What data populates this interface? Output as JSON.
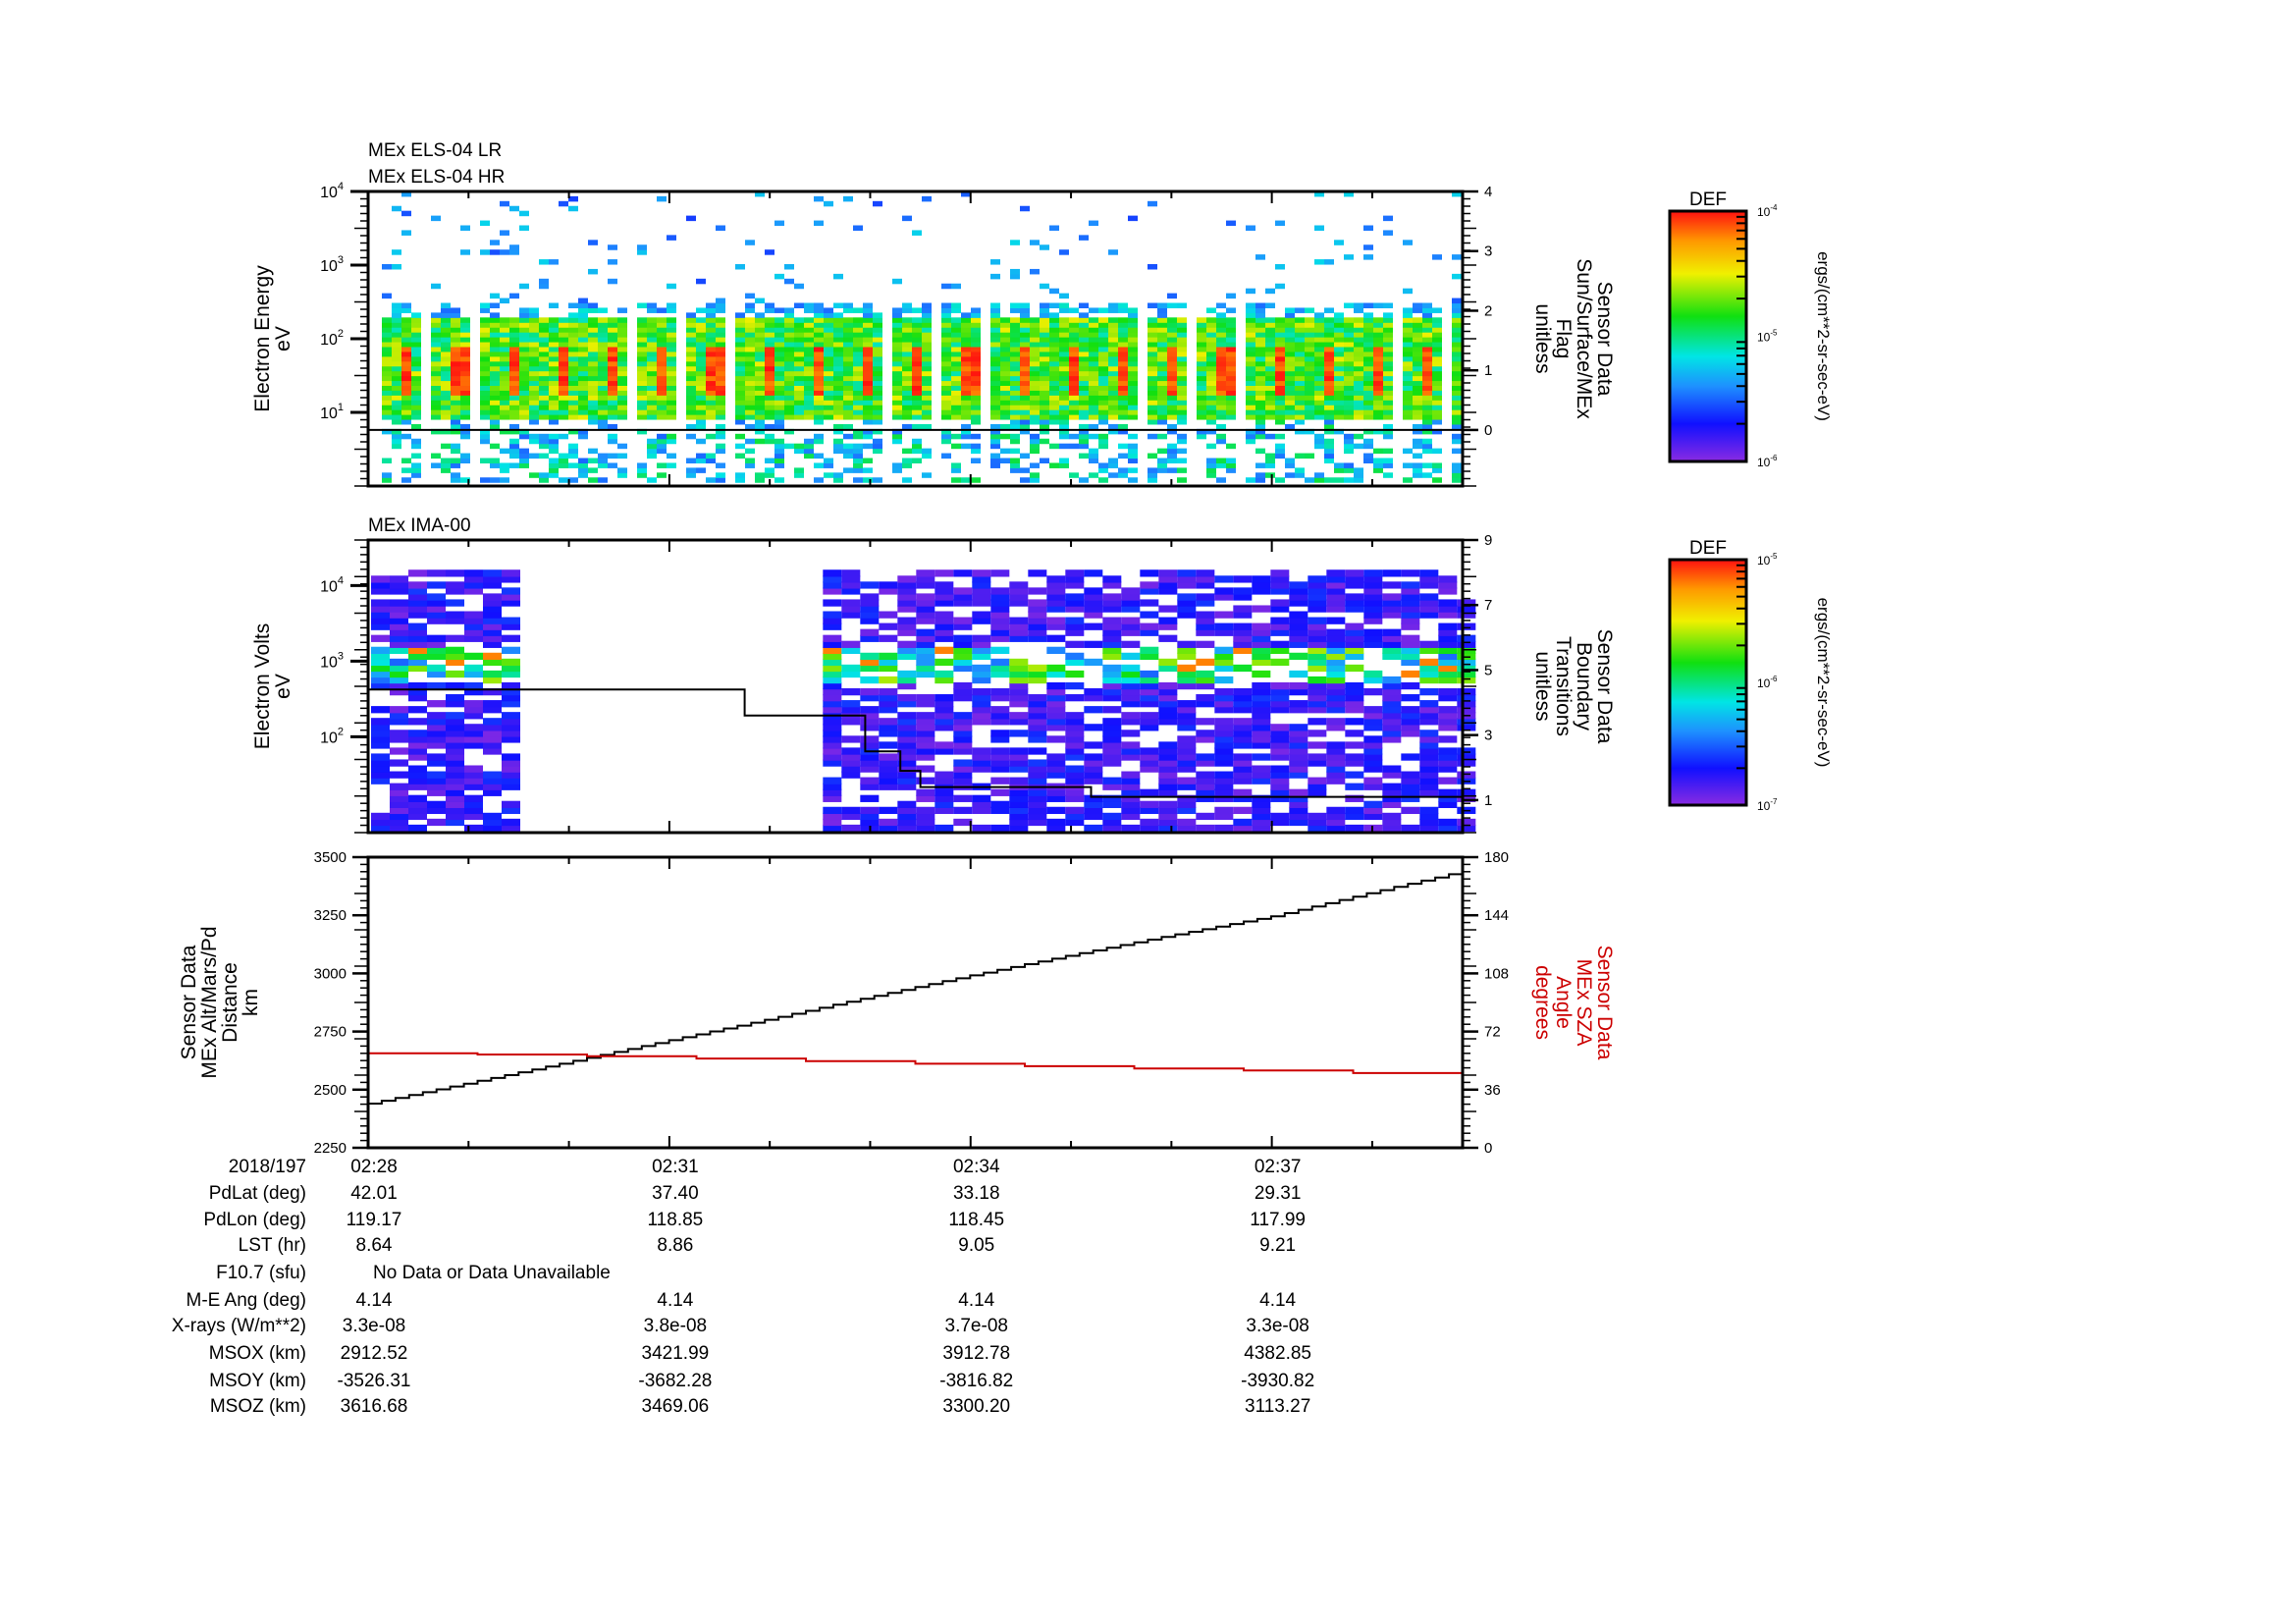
{
  "colors": {
    "axis": "#000000",
    "sza_line": "#cc0000",
    "altitude_line": "#000000"
  },
  "chart_data": [
    {
      "type": "heatmap",
      "title_lines": [
        "MEx ELS-04 LR",
        "MEx ELS-04 HR"
      ],
      "ylabel": [
        "Electron Energy",
        "eV"
      ],
      "yscale": "log",
      "ylim": [
        1,
        10000
      ],
      "yticks": [
        {
          "base": "10",
          "exp": "4",
          "v": 10000
        },
        {
          "base": "10",
          "exp": "3",
          "v": 1000
        },
        {
          "base": "10",
          "exp": "2",
          "v": 100
        },
        {
          "base": "10",
          "exp": "1",
          "v": 10
        }
      ],
      "y2label": [
        "Sensor Data",
        "Sun/Surface/MEx",
        "Flag",
        "unitless"
      ],
      "y2lim": [
        -0.94,
        4
      ],
      "y2ticks": [
        "0",
        "1",
        "2",
        "3",
        "4"
      ],
      "overlay_line": {
        "name": "Sun/Surface/MEx Flag",
        "t_min": [
          0,
          10.9
        ],
        "values": [
          0,
          0
        ]
      },
      "colorbar": {
        "title": "DEF",
        "range_exp": [
          -6,
          -4
        ],
        "ticks": [
          {
            "base": "10",
            "exp": "-4"
          },
          {
            "base": "10",
            "exp": "-5"
          },
          {
            "base": "10",
            "exp": "-6"
          }
        ],
        "unit": "ergs/(cm**2-sr-sec-eV)"
      },
      "description_of_intensity": "dense 10-200 eV population with periodic peaks (~20-60 eV), sparse higher/lower energies"
    },
    {
      "type": "heatmap",
      "title_lines": [
        "MEx IMA-00"
      ],
      "ylabel": [
        "Electron Volts",
        "eV"
      ],
      "yscale": "log",
      "ylim": [
        5.4,
        40000
      ],
      "yticks": [
        {
          "base": "10",
          "exp": "4",
          "v": 10000
        },
        {
          "base": "10",
          "exp": "3",
          "v": 1000
        },
        {
          "base": "10",
          "exp": "2",
          "v": 100
        }
      ],
      "y2label": [
        "Sensor Data",
        "Boundary",
        "Transitions",
        "unitless"
      ],
      "y2lim": [
        0,
        9
      ],
      "y2ticks": [
        "1",
        "3",
        "5",
        "7",
        "9"
      ],
      "data_time_ranges_min": [
        [
          0,
          1.35
        ],
        [
          4.5,
          10.9
        ]
      ],
      "overlay_line": {
        "name": "Boundary Transitions",
        "t_min": [
          0,
          3.75,
          3.75,
          4.95,
          4.95,
          5.3,
          5.3,
          5.5,
          5.5,
          7.2,
          7.2,
          10.9
        ],
        "values": [
          4.4,
          4.4,
          3.6,
          3.6,
          2.5,
          2.5,
          1.9,
          1.9,
          1.4,
          1.4,
          1.1,
          1.1
        ]
      },
      "colorbar": {
        "title": "DEF",
        "range_exp": [
          -7,
          -5
        ],
        "ticks": [
          {
            "base": "10",
            "exp": "-5"
          },
          {
            "base": "10",
            "exp": "-6"
          },
          {
            "base": "10",
            "exp": "-7"
          }
        ],
        "unit": "ergs/(cm**2-sr-sec-eV)"
      }
    },
    {
      "type": "line",
      "ylabel": [
        "Sensor Data",
        "MEx Alt/Mars/Pd",
        "Distance",
        "km"
      ],
      "ylim": [
        2250,
        3500
      ],
      "yticks": [
        "2250",
        "2500",
        "2750",
        "3000",
        "3250",
        "3500"
      ],
      "y2label": [
        "Sensor Data",
        "MEx SZA",
        "Angle",
        "degrees"
      ],
      "y2lim": [
        0,
        180
      ],
      "y2ticks": [
        "0",
        "36",
        "72",
        "108",
        "144",
        "180"
      ],
      "series": [
        {
          "name": "MEx Alt/Mars/Pd Distance (km)",
          "axis": "left",
          "t_min": [
            0,
            1,
            2,
            3,
            4,
            5,
            6,
            7,
            8,
            9,
            10,
            10.9
          ],
          "values": [
            2440,
            2530,
            2620,
            2713,
            2805,
            2900,
            2992,
            3080,
            3165,
            3246,
            3350,
            3440
          ]
        },
        {
          "name": "MEx SZA Angle (degrees)",
          "axis": "right",
          "t_min": [
            0,
            1.5,
            3,
            4.5,
            6,
            7.5,
            9,
            10.3,
            10.9
          ],
          "values": [
            58.5,
            57.5,
            55.7,
            53.5,
            51.2,
            49.3,
            47.5,
            45.5,
            44.8
          ]
        }
      ]
    }
  ],
  "xaxis": {
    "start": "02:28",
    "span_min": 10.9,
    "ticks": [
      {
        "label": "02:28",
        "t": 0
      },
      {
        "label": "02:31",
        "t": 3
      },
      {
        "label": "02:34",
        "t": 6
      },
      {
        "label": "02:37",
        "t": 9
      }
    ]
  },
  "table": {
    "rows": [
      {
        "label": "2018/197",
        "values": [
          "02:28",
          "02:31",
          "02:34",
          "02:37"
        ]
      },
      {
        "label": "PdLat (deg)",
        "values": [
          "42.01",
          "37.40",
          "33.18",
          "29.31"
        ]
      },
      {
        "label": "PdLon (deg)",
        "values": [
          "119.17",
          "118.85",
          "118.45",
          "117.99"
        ]
      },
      {
        "label": "LST (hr)",
        "values": [
          "8.64",
          "8.86",
          "9.05",
          "9.21"
        ]
      },
      {
        "label": "F10.7 (sfu)",
        "note": "No Data or Data Unavailable"
      },
      {
        "label": "M-E Ang (deg)",
        "values": [
          "4.14",
          "4.14",
          "4.14",
          "4.14"
        ]
      },
      {
        "label": "X-rays (W/m**2)",
        "values": [
          "3.3e-08",
          "3.8e-08",
          "3.7e-08",
          "3.3e-08"
        ]
      },
      {
        "label": "MSOX (km)",
        "values": [
          "2912.52",
          "3421.99",
          "3912.78",
          "4382.85"
        ]
      },
      {
        "label": "MSOY (km)",
        "values": [
          "-3526.31",
          "-3682.28",
          "-3816.82",
          "-3930.82"
        ]
      },
      {
        "label": "MSOZ (km)",
        "values": [
          "3616.68",
          "3469.06",
          "3300.20",
          "3113.27"
        ]
      }
    ]
  }
}
